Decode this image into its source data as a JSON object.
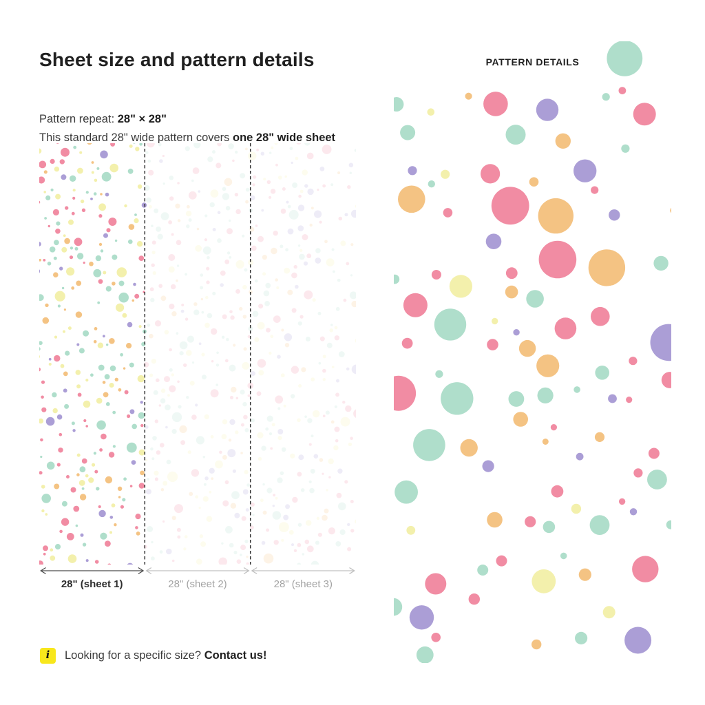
{
  "intro": {
    "title": "Sheet size and pattern details",
    "repeat_label": "Pattern repeat: ",
    "repeat_value": "28\" × 28\"",
    "coverage_label": "This standard 28\" wide pattern covers ",
    "coverage_value": "one 28\" wide sheet"
  },
  "diagram": {
    "sheets": [
      {
        "label": "28\" (sheet 1)",
        "primary": true
      },
      {
        "label": "28\" (sheet 2)",
        "primary": false
      },
      {
        "label": "28\" (sheet 3)",
        "primary": false
      }
    ]
  },
  "swatch": {
    "title": "PATTERN DETAILS"
  },
  "footer": {
    "icon_glyph": "i",
    "question": "Looking for a specific size? ",
    "cta": "Contact us!"
  },
  "palette": {
    "text_dark": "#1F1F1F",
    "text_body": "#3A3A3A",
    "text_muted": "#A3A3A3",
    "arrow_dark": "#4D4D4D",
    "arrow_light": "#C0C0C0",
    "dash_line": "#333333",
    "info_yellow": "#F8E71C"
  },
  "pattern_config": {
    "dot_color_names": [
      "pink",
      "mint",
      "yellow",
      "orange",
      "purple"
    ],
    "dot_colors": [
      "#F18CA3",
      "#AFDECB",
      "#F3F0AC",
      "#F4C383",
      "#AB9ED6"
    ],
    "dot_color_weights": [
      0.28,
      0.27,
      0.19,
      0.13,
      0.13
    ],
    "diagram_pattern": {
      "seed": 7,
      "count": 760,
      "faded_opacity": 0.2
    },
    "swatch_pattern": {
      "seed": 13,
      "count": 96
    }
  }
}
